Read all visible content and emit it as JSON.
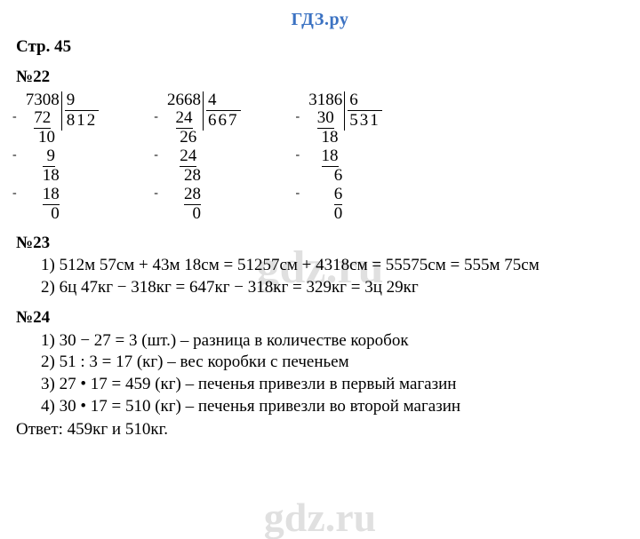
{
  "site_header": "ГДЗ.ру",
  "watermark_text": "gdz.ru",
  "page_ref": "Стр. 45",
  "sections": {
    "s22": {
      "title": "№22",
      "divisions": [
        {
          "dividend": "7308",
          "divisor": "9",
          "quotient": "812",
          "left_rows": [
            {
              "text": " 7308",
              "minus": false,
              "u_start": 0,
              "u_len": 0
            },
            {
              "text": " 72  ",
              "minus": true,
              "u_start": 1,
              "u_len": 2
            },
            {
              "text": "  10 ",
              "minus": false,
              "u_start": 0,
              "u_len": 0
            },
            {
              "text": "   9 ",
              "minus": true,
              "u_start": 2,
              "u_len": 2
            },
            {
              "text": "   18",
              "minus": false,
              "u_start": 0,
              "u_len": 0
            },
            {
              "text": "   18",
              "minus": true,
              "u_start": 3,
              "u_len": 2
            },
            {
              "text": "    0",
              "minus": false,
              "u_start": 0,
              "u_len": 0
            }
          ]
        },
        {
          "dividend": "2668",
          "divisor": "4",
          "quotient": "667",
          "left_rows": [
            {
              "text": " 2668",
              "minus": false,
              "u_start": 0,
              "u_len": 0
            },
            {
              "text": " 24  ",
              "minus": true,
              "u_start": 1,
              "u_len": 2
            },
            {
              "text": "  26 ",
              "minus": false,
              "u_start": 0,
              "u_len": 0
            },
            {
              "text": "  24 ",
              "minus": true,
              "u_start": 2,
              "u_len": 2
            },
            {
              "text": "   28",
              "minus": false,
              "u_start": 0,
              "u_len": 0
            },
            {
              "text": "   28",
              "minus": true,
              "u_start": 3,
              "u_len": 2
            },
            {
              "text": "    0",
              "minus": false,
              "u_start": 0,
              "u_len": 0
            }
          ]
        },
        {
          "dividend": "3186",
          "divisor": "6",
          "quotient": "531",
          "left_rows": [
            {
              "text": " 3186",
              "minus": false,
              "u_start": 0,
              "u_len": 0
            },
            {
              "text": " 30  ",
              "minus": true,
              "u_start": 1,
              "u_len": 2
            },
            {
              "text": "  18 ",
              "minus": false,
              "u_start": 0,
              "u_len": 0
            },
            {
              "text": "  18 ",
              "minus": true,
              "u_start": 2,
              "u_len": 2
            },
            {
              "text": "    6",
              "minus": false,
              "u_start": 0,
              "u_len": 0
            },
            {
              "text": "    6",
              "minus": true,
              "u_start": 4,
              "u_len": 1
            },
            {
              "text": "    0",
              "minus": false,
              "u_start": 0,
              "u_len": 0
            }
          ]
        }
      ]
    },
    "s23": {
      "title": "№23",
      "lines": [
        "1) 512м 57см + 43м 18см = 51257см + 4318см = 55575см = 555м 75см",
        "2) 6ц 47кг − 318кг = 647кг − 318кг = 329кг = 3ц 29кг"
      ]
    },
    "s24": {
      "title": "№24",
      "lines": [
        "1) 30 − 27 = 3 (шт.) – разница в количестве коробок",
        "2) 51 : 3 = 17 (кг) – вес коробки с печеньем",
        "3) 27 • 17 = 459 (кг) – печенья привезли в первый магазин",
        "4) 30 • 17 = 510 (кг) – печенья привезли во второй магазин"
      ],
      "answer": "Ответ: 459кг и 510кг."
    }
  }
}
